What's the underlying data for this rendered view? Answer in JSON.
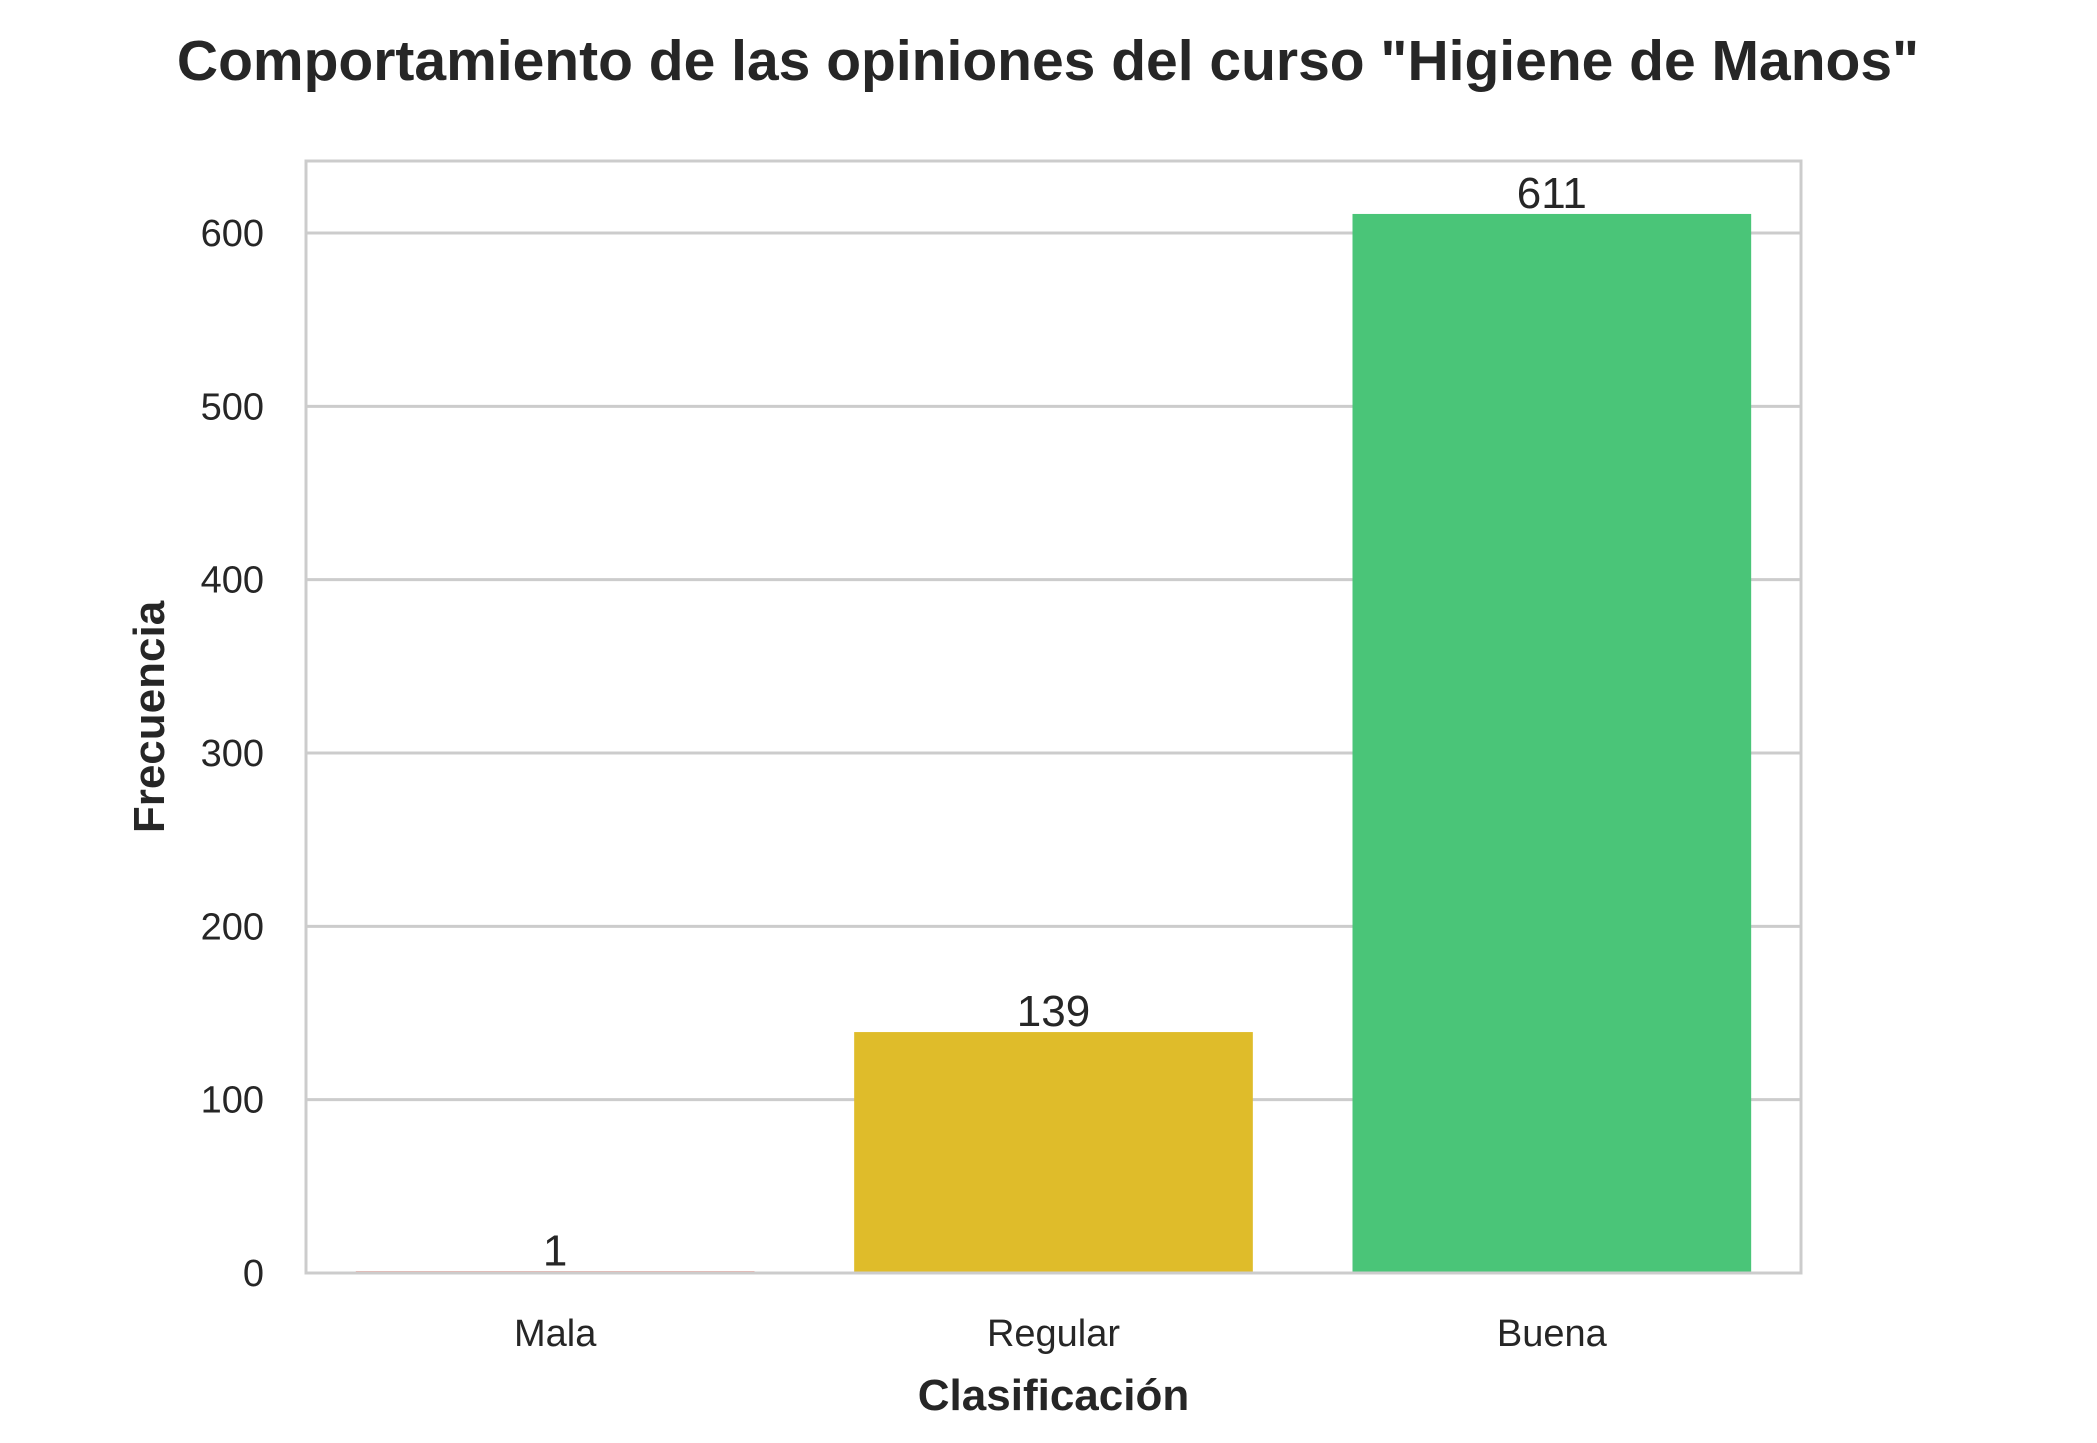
{
  "chart_data": {
    "type": "bar",
    "title": "Comportamiento de las opiniones del curso \"Higiene de Manos\"",
    "xlabel": "Clasificación",
    "ylabel": "Frecuencia",
    "categories": [
      "Mala",
      "Regular",
      "Buena"
    ],
    "values": [
      1,
      139,
      611
    ],
    "data_labels": [
      "1",
      "139",
      "611"
    ],
    "colors": [
      "#e74c3c",
      "#dfbc2a",
      "#4ac578"
    ],
    "ylim": [
      0,
      641.55
    ],
    "yticks": [
      0,
      100,
      200,
      300,
      400,
      500,
      600
    ],
    "grid": true,
    "grid_color": "#cccccc",
    "spine_color": "#cccccc"
  }
}
